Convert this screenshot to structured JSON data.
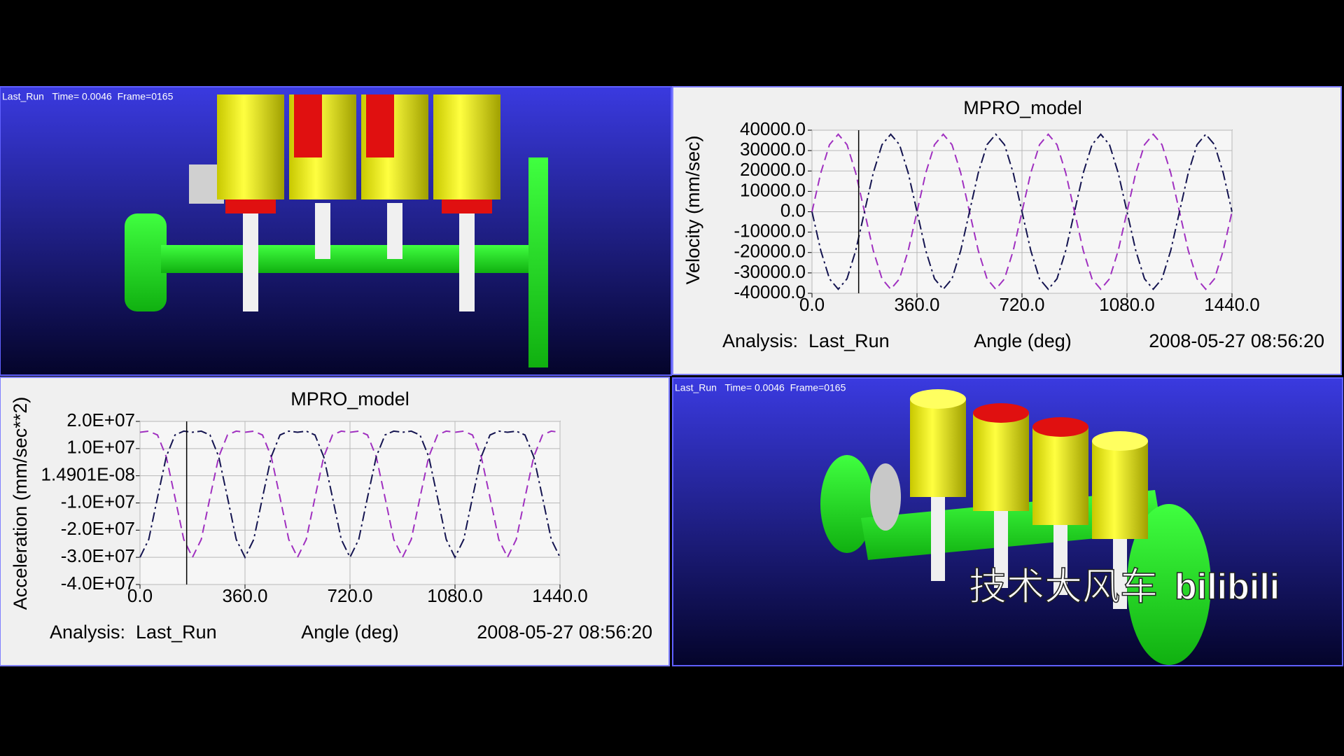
{
  "viewports": [
    {
      "info": "Last_Run   Time= 0.0046  Frame=0165"
    },
    {
      "info": "Last_Run   Time= 0.0046  Frame=0165"
    }
  ],
  "watermark": {
    "text": "技术大风车",
    "brand": "bilibili"
  },
  "chart_data": [
    {
      "type": "line",
      "title": "MPRO_model",
      "y_label": "Velocity (mm/sec)",
      "x_label": "Angle (deg)",
      "analysis": "Analysis:  Last_Run",
      "timestamp": "2008-05-27 08:56:20",
      "x": [
        0,
        30,
        60,
        90,
        120,
        150,
        180,
        210,
        240,
        270,
        300,
        330,
        360,
        390,
        420,
        450,
        480,
        510,
        540,
        570,
        600,
        630,
        660,
        690,
        720,
        750,
        780,
        810,
        840,
        870,
        900,
        930,
        960,
        990,
        1020,
        1050,
        1080,
        1110,
        1140,
        1170,
        1200,
        1230,
        1260,
        1290,
        1320,
        1350,
        1380,
        1410,
        1440
      ],
      "series": [
        {
          "color": "#a030c0",
          "values": [
            0,
            19000,
            32900,
            38000,
            32900,
            19000,
            0,
            -19000,
            -32900,
            -38000,
            -32900,
            -19000,
            0,
            19000,
            32900,
            38000,
            32900,
            19000,
            0,
            -19000,
            -32900,
            -38000,
            -32900,
            -19000,
            0,
            19000,
            32900,
            38000,
            32900,
            19000,
            0,
            -19000,
            -32900,
            -38000,
            -32900,
            -19000,
            0,
            19000,
            32900,
            38000,
            32900,
            19000,
            0,
            -19000,
            -32900,
            -38000,
            -32900,
            -19000,
            0
          ]
        },
        {
          "color": "#141450",
          "values": [
            0,
            -19000,
            -32900,
            -38000,
            -32900,
            -19000,
            0,
            19000,
            32900,
            38000,
            32900,
            19000,
            0,
            -19000,
            -32900,
            -38000,
            -32900,
            -19000,
            0,
            19000,
            32900,
            38000,
            32900,
            19000,
            0,
            -19000,
            -32900,
            -38000,
            -32900,
            -19000,
            0,
            19000,
            32900,
            38000,
            32900,
            19000,
            0,
            -19000,
            -32900,
            -38000,
            -32900,
            -19000,
            0,
            19000,
            32900,
            38000,
            32900,
            19000,
            0
          ]
        }
      ],
      "xlim": [
        0,
        1440
      ],
      "xticks": [
        {
          "value": 0,
          "label": "0.0"
        },
        {
          "value": 360,
          "label": "360.0"
        },
        {
          "value": 720,
          "label": "720.0"
        },
        {
          "value": 1080,
          "label": "1080.0"
        },
        {
          "value": 1440,
          "label": "1440.0"
        }
      ],
      "ylim": [
        -40000,
        40000
      ],
      "yticks": [
        {
          "value": 40000,
          "label": "40000.0"
        },
        {
          "value": 30000,
          "label": "30000.0"
        },
        {
          "value": 20000,
          "label": "20000.0"
        },
        {
          "value": 10000,
          "label": "10000.0"
        },
        {
          "value": 0,
          "label": "0.0"
        },
        {
          "value": -10000,
          "label": "-10000.0"
        },
        {
          "value": -20000,
          "label": "-20000.0"
        },
        {
          "value": -30000,
          "label": "-30000.0"
        },
        {
          "value": -40000,
          "label": "-40000.0"
        }
      ],
      "grid": true,
      "cursor_x": 160
    },
    {
      "type": "line",
      "title": "MPRO_model",
      "y_label": "Acceleration (mm/sec**2)",
      "x_label": "Angle (deg)",
      "analysis": "Analysis:  Last_Run",
      "timestamp": "2008-05-27 08:56:20",
      "x": [
        0,
        30,
        60,
        90,
        120,
        150,
        180,
        210,
        240,
        270,
        300,
        330,
        360,
        390,
        420,
        450,
        480,
        510,
        540,
        570,
        600,
        630,
        660,
        690,
        720,
        750,
        780,
        810,
        840,
        870,
        900,
        930,
        960,
        990,
        1020,
        1050,
        1080,
        1110,
        1140,
        1170,
        1200,
        1230,
        1260,
        1290,
        1320,
        1350,
        1380,
        1410,
        1440
      ],
      "series": [
        {
          "color": "#a030c0",
          "values": [
            16000000,
            16420000,
            15000000,
            7000000,
            -8000000,
            -23420000,
            -30000000,
            -23420000,
            -8000000,
            7000000,
            15000000,
            16420000,
            16000000,
            16420000,
            15000000,
            7000000,
            -8000000,
            -23420000,
            -30000000,
            -23420000,
            -8000000,
            7000000,
            15000000,
            16420000,
            16000000,
            16420000,
            15000000,
            7000000,
            -8000000,
            -23420000,
            -30000000,
            -23420000,
            -8000000,
            7000000,
            15000000,
            16420000,
            16000000,
            16420000,
            15000000,
            7000000,
            -8000000,
            -23420000,
            -30000000,
            -23420000,
            -8000000,
            7000000,
            15000000,
            16420000,
            16000000
          ]
        },
        {
          "color": "#141450",
          "values": [
            -30000000,
            -23420000,
            -8000000,
            7000000,
            15000000,
            16420000,
            16000000,
            16420000,
            15000000,
            7000000,
            -8000000,
            -23420000,
            -30000000,
            -23420000,
            -8000000,
            7000000,
            15000000,
            16420000,
            16000000,
            16420000,
            15000000,
            7000000,
            -8000000,
            -23420000,
            -30000000,
            -23420000,
            -8000000,
            7000000,
            15000000,
            16420000,
            16000000,
            16420000,
            15000000,
            7000000,
            -8000000,
            -23420000,
            -30000000,
            -23420000,
            -8000000,
            7000000,
            15000000,
            16420000,
            16000000,
            16420000,
            15000000,
            7000000,
            -8000000,
            -23420000,
            -30000000
          ]
        }
      ],
      "xlim": [
        0,
        1440
      ],
      "xticks": [
        {
          "value": 0,
          "label": "0.0"
        },
        {
          "value": 360,
          "label": "360.0"
        },
        {
          "value": 720,
          "label": "720.0"
        },
        {
          "value": 1080,
          "label": "1080.0"
        },
        {
          "value": 1440,
          "label": "1440.0"
        }
      ],
      "ylim": [
        -40000000,
        20000000
      ],
      "yticks": [
        {
          "value": 20000000,
          "label": "2.0E+07"
        },
        {
          "value": 10000000,
          "label": "1.0E+07"
        },
        {
          "value": 1.4901e-08,
          "label": "1.4901E-08"
        },
        {
          "value": -10000000,
          "label": "-1.0E+07"
        },
        {
          "value": -20000000,
          "label": "-2.0E+07"
        },
        {
          "value": -30000000,
          "label": "-3.0E+07"
        },
        {
          "value": -40000000,
          "label": "-4.0E+07"
        }
      ],
      "grid": true,
      "cursor_x": 160
    }
  ]
}
